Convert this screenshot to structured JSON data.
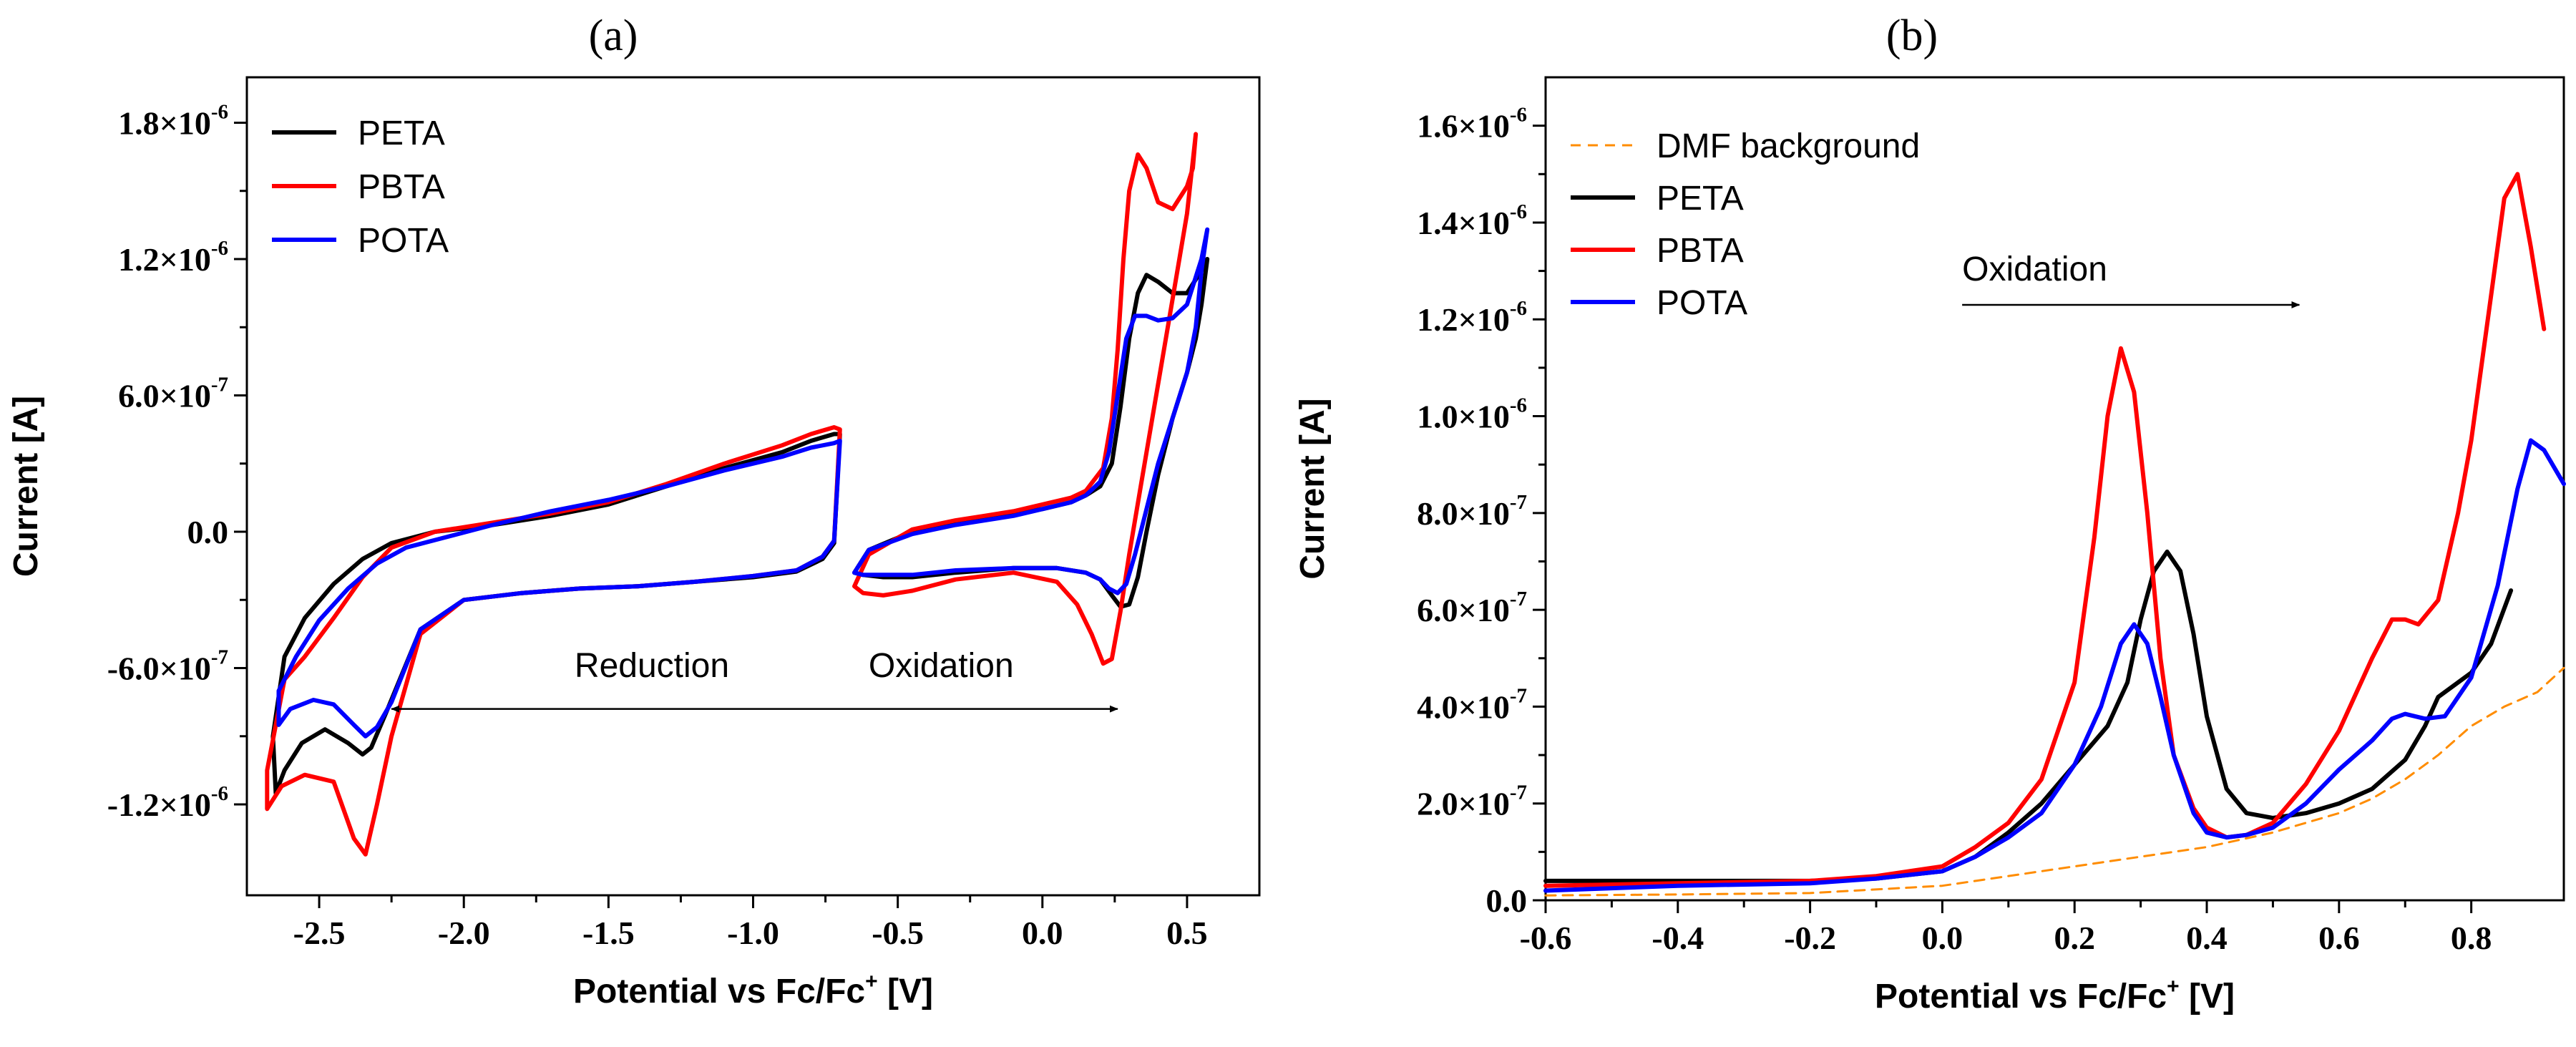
{
  "chart_data": [
    {
      "panel_label": "(a)",
      "type": "line",
      "title": "",
      "xlabel_main": "Potential vs Fc/Fc",
      "xlabel_sup": "+",
      "xlabel_tail": " [V]",
      "ylabel": "Current [A]",
      "xlim": [
        -2.75,
        0.75
      ],
      "ylim": [
        -1.6e-06,
        2e-06
      ],
      "xticks": [
        -2.5,
        -2.0,
        -1.5,
        -1.0,
        -0.5,
        0.0,
        0.5
      ],
      "xtick_labels": [
        "-2.5",
        "-2.0",
        "-1.5",
        "-1.0",
        "-0.5",
        "0.0",
        "0.5"
      ],
      "yticks": [
        {
          "value": 1.8e-06,
          "mantissa": "1.8×10",
          "exp": "-6"
        },
        {
          "value": 1.2e-06,
          "mantissa": "1.2×10",
          "exp": "-6"
        },
        {
          "value": 6e-07,
          "mantissa": "6.0×10",
          "exp": "-7"
        },
        {
          "value": 0,
          "mantissa": "0.0",
          "exp": ""
        },
        {
          "value": -6e-07,
          "mantissa": "-6.0×10",
          "exp": "-7"
        },
        {
          "value": -1.2e-06,
          "mantissa": "-1.2×10",
          "exp": "-6"
        }
      ],
      "legend": {
        "position": "top-left",
        "entries": [
          {
            "label": "PETA",
            "color": "#000000",
            "dash": false
          },
          {
            "label": "PBTA",
            "color": "#ff0000",
            "dash": false
          },
          {
            "label": "POTA",
            "color": "#0000ff",
            "dash": false
          }
        ]
      },
      "annotations": [
        {
          "text": "Reduction",
          "x": -1.35,
          "y": -6.4e-07,
          "anchor": "middle",
          "arrow": {
            "from": [
              -0.65,
              -7.8e-07
            ],
            "to": [
              -2.25,
              -7.8e-07
            ]
          }
        },
        {
          "text": "Oxidation",
          "x": -0.35,
          "y": -6.4e-07,
          "anchor": "middle",
          "arrow": {
            "from": [
              -0.65,
              -7.8e-07
            ],
            "to": [
              0.26,
              -7.8e-07
            ]
          }
        }
      ],
      "series": [
        {
          "name": "PETA",
          "color": "#000000",
          "x": [
            -0.7,
            -0.72,
            -0.76,
            -0.85,
            -1.0,
            -1.2,
            -1.4,
            -1.6,
            -1.8,
            -2.0,
            -2.15,
            -2.27,
            -2.32,
            -2.35,
            -2.4,
            -2.48,
            -2.56,
            -2.62,
            -2.65,
            -2.66,
            -2.62,
            -2.55,
            -2.45,
            -2.35,
            -2.25,
            -2.1,
            -1.9,
            -1.7,
            -1.5,
            -1.3,
            -1.1,
            -0.9,
            -0.8,
            -0.72,
            -0.7
          ],
          "y": [
            4.3e-07,
            -5e-08,
            -1.2e-07,
            -1.75e-07,
            -2e-07,
            -2.2e-07,
            -2.4e-07,
            -2.5e-07,
            -2.7e-07,
            -3e-07,
            -4.3e-07,
            -8e-07,
            -9.5e-07,
            -9.8e-07,
            -9.3e-07,
            -8.7e-07,
            -9.3e-07,
            -1.05e-06,
            -1.15e-06,
            -9e-07,
            -5.5e-07,
            -3.8e-07,
            -2.3e-07,
            -1.2e-07,
            -5e-08,
            0,
            3e-08,
            7e-08,
            1.2e-07,
            2e-07,
            2.8e-07,
            3.5e-07,
            4e-07,
            4.3e-07,
            4.3e-07
          ]
        },
        {
          "name": "PBTA",
          "color": "#ff0000",
          "x": [
            -0.7,
            -0.72,
            -0.76,
            -0.85,
            -1.0,
            -1.2,
            -1.4,
            -1.6,
            -1.8,
            -2.0,
            -2.15,
            -2.25,
            -2.3,
            -2.34,
            -2.38,
            -2.45,
            -2.55,
            -2.63,
            -2.68,
            -2.68,
            -2.62,
            -2.55,
            -2.45,
            -2.35,
            -2.25,
            -2.1,
            -1.9,
            -1.7,
            -1.5,
            -1.3,
            -1.1,
            -0.9,
            -0.8,
            -0.72,
            -0.7
          ],
          "y": [
            4.5e-07,
            -4e-08,
            -1.1e-07,
            -1.7e-07,
            -1.95e-07,
            -2.2e-07,
            -2.4e-07,
            -2.5e-07,
            -2.7e-07,
            -3e-07,
            -4.5e-07,
            -9e-07,
            -1.2e-06,
            -1.42e-06,
            -1.35e-06,
            -1.1e-06,
            -1.07e-06,
            -1.12e-06,
            -1.22e-06,
            -1.05e-06,
            -6.5e-07,
            -5.5e-07,
            -3.8e-07,
            -2e-07,
            -7e-08,
            0,
            4e-08,
            8e-08,
            1.3e-07,
            2.1e-07,
            3e-07,
            3.8e-07,
            4.3e-07,
            4.6e-07,
            4.5e-07
          ]
        },
        {
          "name": "POTA",
          "color": "#0000ff",
          "x": [
            -0.7,
            -0.72,
            -0.76,
            -0.85,
            -1.0,
            -1.2,
            -1.4,
            -1.6,
            -1.8,
            -2.0,
            -2.15,
            -2.25,
            -2.3,
            -2.34,
            -2.38,
            -2.45,
            -2.52,
            -2.6,
            -2.64,
            -2.64,
            -2.58,
            -2.5,
            -2.4,
            -2.3,
            -2.2,
            -2.05,
            -1.9,
            -1.7,
            -1.5,
            -1.3,
            -1.1,
            -0.9,
            -0.8,
            -0.72,
            -0.7
          ],
          "y": [
            4e-07,
            -4e-08,
            -1.1e-07,
            -1.7e-07,
            -1.95e-07,
            -2.2e-07,
            -2.4e-07,
            -2.5e-07,
            -2.7e-07,
            -3e-07,
            -4.3e-07,
            -7.5e-07,
            -8.6e-07,
            -9e-07,
            -8.5e-07,
            -7.6e-07,
            -7.4e-07,
            -7.8e-07,
            -8.5e-07,
            -7e-07,
            -5.5e-07,
            -3.9e-07,
            -2.5e-07,
            -1.4e-07,
            -7e-08,
            -2e-08,
            3e-08,
            9e-08,
            1.4e-07,
            2e-07,
            2.7e-07,
            3.3e-07,
            3.7e-07,
            3.9e-07,
            4e-07
          ]
        },
        {
          "name": "PETA-ox",
          "color": "#000000",
          "x": [
            -0.65,
            -0.62,
            -0.55,
            -0.45,
            -0.3,
            -0.1,
            0.05,
            0.15,
            0.2,
            0.24,
            0.27,
            0.3,
            0.33,
            0.36,
            0.4,
            0.45,
            0.5,
            0.53,
            0.55,
            0.57,
            0.55,
            0.5,
            0.45,
            0.4,
            0.36,
            0.33,
            0.3,
            0.27,
            0.24,
            0.2,
            0.15,
            0.1,
            0.0,
            -0.1,
            -0.2,
            -0.3,
            -0.45,
            -0.6,
            -0.65
          ],
          "y": [
            -1.8e-07,
            -1.9e-07,
            -2e-07,
            -2e-07,
            -1.8e-07,
            -1.6e-07,
            -1.6e-07,
            -1.8e-07,
            -2.1e-07,
            -2.8e-07,
            -3.3e-07,
            -3.2e-07,
            -2e-07,
            0,
            2.5e-07,
            5e-07,
            7e-07,
            8.5e-07,
            1e-06,
            1.2e-06,
            1.15e-06,
            1.05e-06,
            1.05e-06,
            1.1e-06,
            1.13e-06,
            1.05e-06,
            8.5e-07,
            5.5e-07,
            3e-07,
            2e-07,
            1.6e-07,
            1.3e-07,
            1e-07,
            8e-08,
            6e-08,
            4e-08,
            0,
            -8e-08,
            -1.8e-07
          ]
        },
        {
          "name": "PBTA-ox",
          "color": "#ff0000",
          "x": [
            -0.65,
            -0.62,
            -0.55,
            -0.45,
            -0.3,
            -0.1,
            0.05,
            0.12,
            0.17,
            0.21,
            0.24,
            0.27,
            0.3,
            0.34,
            0.38,
            0.42,
            0.46,
            0.5,
            0.53,
            0.52,
            0.5,
            0.45,
            0.4,
            0.36,
            0.33,
            0.3,
            0.28,
            0.26,
            0.24,
            0.21,
            0.15,
            0.1,
            0.0,
            -0.1,
            -0.2,
            -0.3,
            -0.45,
            -0.6,
            -0.65
          ],
          "y": [
            -2.4e-07,
            -2.7e-07,
            -2.8e-07,
            -2.6e-07,
            -2.1e-07,
            -1.8e-07,
            -2.2e-07,
            -3.2e-07,
            -4.5e-07,
            -5.8e-07,
            -5.6e-07,
            -3.5e-07,
            -1e-07,
            2e-07,
            5e-07,
            8e-07,
            1.1e-06,
            1.4e-06,
            1.75e-06,
            1.6e-06,
            1.52e-06,
            1.42e-06,
            1.45e-06,
            1.6e-06,
            1.66e-06,
            1.5e-06,
            1.2e-06,
            8e-07,
            5e-07,
            2.8e-07,
            1.8e-07,
            1.5e-07,
            1.2e-07,
            9e-08,
            7e-08,
            5e-08,
            1e-08,
            -1e-07,
            -2.4e-07
          ]
        },
        {
          "name": "POTA-ox",
          "color": "#0000ff",
          "x": [
            -0.65,
            -0.62,
            -0.55,
            -0.45,
            -0.3,
            -0.1,
            0.05,
            0.15,
            0.2,
            0.23,
            0.26,
            0.29,
            0.32,
            0.36,
            0.4,
            0.45,
            0.5,
            0.53,
            0.55,
            0.57,
            0.55,
            0.5,
            0.45,
            0.4,
            0.36,
            0.32,
            0.29,
            0.26,
            0.23,
            0.2,
            0.15,
            0.1,
            0.0,
            -0.1,
            -0.2,
            -0.3,
            -0.45,
            -0.6,
            -0.65
          ],
          "y": [
            -1.8e-07,
            -1.9e-07,
            -1.9e-07,
            -1.9e-07,
            -1.7e-07,
            -1.6e-07,
            -1.6e-07,
            -1.8e-07,
            -2.1e-07,
            -2.5e-07,
            -2.7e-07,
            -2.3e-07,
            -1e-07,
            1e-07,
            3e-07,
            5e-07,
            7e-07,
            9e-07,
            1.15e-06,
            1.33e-06,
            1.2e-06,
            1e-06,
            9.4e-07,
            9.3e-07,
            9.5e-07,
            9.5e-07,
            8.5e-07,
            6e-07,
            3.5e-07,
            2.2e-07,
            1.6e-07,
            1.3e-07,
            1e-07,
            7e-08,
            5e-08,
            3e-08,
            -1e-08,
            -8e-08,
            -1.8e-07
          ]
        }
      ]
    },
    {
      "panel_label": "(b)",
      "type": "line",
      "title": "",
      "xlabel_main": "Potential vs Fc/Fc",
      "xlabel_sup": "+",
      "xlabel_tail": " [V]",
      "ylabel": "Current [A]",
      "xlim": [
        -0.6,
        0.94
      ],
      "ylim": [
        0,
        1.7e-06
      ],
      "xticks": [
        -0.6,
        -0.4,
        -0.2,
        0.0,
        0.2,
        0.4,
        0.6,
        0.8
      ],
      "xtick_labels": [
        "-0.6",
        "-0.4",
        "-0.2",
        "0.0",
        "0.2",
        "0.4",
        "0.6",
        "0.8"
      ],
      "yticks": [
        {
          "value": 1.6e-06,
          "mantissa": "1.6×10",
          "exp": "-6"
        },
        {
          "value": 1.4e-06,
          "mantissa": "1.4×10",
          "exp": "-6"
        },
        {
          "value": 1.2e-06,
          "mantissa": "1.2×10",
          "exp": "-6"
        },
        {
          "value": 1e-06,
          "mantissa": "1.0×10",
          "exp": "-6"
        },
        {
          "value": 8e-07,
          "mantissa": "8.0×10",
          "exp": "-7"
        },
        {
          "value": 6e-07,
          "mantissa": "6.0×10",
          "exp": "-7"
        },
        {
          "value": 4e-07,
          "mantissa": "4.0×10",
          "exp": "-7"
        },
        {
          "value": 2e-07,
          "mantissa": "2.0×10",
          "exp": "-7"
        },
        {
          "value": 0,
          "mantissa": "0.0",
          "exp": ""
        }
      ],
      "legend": {
        "position": "top-left",
        "entries": [
          {
            "label": "DMF background",
            "color": "#ff8c00",
            "dash": true
          },
          {
            "label": "PETA",
            "color": "#000000",
            "dash": false
          },
          {
            "label": "PBTA",
            "color": "#ff0000",
            "dash": false
          },
          {
            "label": "POTA",
            "color": "#0000ff",
            "dash": false
          }
        ]
      },
      "annotations": [
        {
          "text": "Oxidation",
          "x": 0.03,
          "y": 1.28e-06,
          "anchor": "start",
          "arrow": {
            "from": [
              0.03,
              1.23e-06
            ],
            "to": [
              0.54,
              1.23e-06
            ]
          }
        }
      ],
      "series": [
        {
          "name": "DMF background",
          "color": "#ff8c00",
          "dash": true,
          "x": [
            -0.6,
            -0.4,
            -0.2,
            0.0,
            0.2,
            0.4,
            0.5,
            0.6,
            0.65,
            0.7,
            0.75,
            0.8,
            0.85,
            0.9,
            0.94
          ],
          "y": [
            1e-08,
            1.2e-08,
            1.5e-08,
            3e-08,
            7e-08,
            1.1e-07,
            1.4e-07,
            1.8e-07,
            2.1e-07,
            2.5e-07,
            3e-07,
            3.6e-07,
            4e-07,
            4.3e-07,
            4.8e-07
          ]
        },
        {
          "name": "PETA",
          "color": "#000000",
          "x": [
            -0.6,
            -0.4,
            -0.2,
            -0.1,
            0.0,
            0.05,
            0.1,
            0.15,
            0.2,
            0.25,
            0.28,
            0.3,
            0.32,
            0.34,
            0.36,
            0.38,
            0.4,
            0.43,
            0.46,
            0.5,
            0.55,
            0.6,
            0.65,
            0.7,
            0.73,
            0.75,
            0.78,
            0.8,
            0.83,
            0.86
          ],
          "y": [
            4e-08,
            4e-08,
            4e-08,
            4.5e-08,
            6e-08,
            9e-08,
            1.4e-07,
            2e-07,
            2.8e-07,
            3.6e-07,
            4.5e-07,
            5.8e-07,
            6.8e-07,
            7.2e-07,
            6.8e-07,
            5.5e-07,
            3.8e-07,
            2.3e-07,
            1.8e-07,
            1.7e-07,
            1.8e-07,
            2e-07,
            2.3e-07,
            2.9e-07,
            3.6e-07,
            4.2e-07,
            4.5e-07,
            4.7e-07,
            5.3e-07,
            6.4e-07
          ]
        },
        {
          "name": "PBTA",
          "color": "#ff0000",
          "x": [
            -0.6,
            -0.4,
            -0.2,
            -0.1,
            0.0,
            0.05,
            0.1,
            0.15,
            0.2,
            0.23,
            0.25,
            0.27,
            0.29,
            0.31,
            0.33,
            0.35,
            0.38,
            0.4,
            0.43,
            0.46,
            0.5,
            0.55,
            0.6,
            0.65,
            0.68,
            0.7,
            0.72,
            0.75,
            0.78,
            0.8,
            0.83,
            0.85,
            0.87,
            0.89,
            0.91
          ],
          "y": [
            3e-08,
            3.5e-08,
            4e-08,
            5e-08,
            7e-08,
            1.1e-07,
            1.6e-07,
            2.5e-07,
            4.5e-07,
            7.5e-07,
            1e-06,
            1.14e-06,
            1.05e-06,
            8e-07,
            5e-07,
            3e-07,
            1.9e-07,
            1.5e-07,
            1.3e-07,
            1.35e-07,
            1.6e-07,
            2.4e-07,
            3.5e-07,
            5e-07,
            5.8e-07,
            5.8e-07,
            5.7e-07,
            6.2e-07,
            8e-07,
            9.5e-07,
            1.25e-06,
            1.45e-06,
            1.5e-06,
            1.35e-06,
            1.18e-06
          ]
        },
        {
          "name": "POTA",
          "color": "#0000ff",
          "x": [
            -0.6,
            -0.4,
            -0.2,
            -0.1,
            0.0,
            0.05,
            0.1,
            0.15,
            0.2,
            0.24,
            0.27,
            0.29,
            0.31,
            0.33,
            0.35,
            0.38,
            0.4,
            0.43,
            0.46,
            0.5,
            0.55,
            0.6,
            0.65,
            0.68,
            0.7,
            0.73,
            0.76,
            0.8,
            0.84,
            0.87,
            0.89,
            0.91,
            0.94
          ],
          "y": [
            2e-08,
            3e-08,
            3.5e-08,
            4.5e-08,
            6e-08,
            9e-08,
            1.3e-07,
            1.8e-07,
            2.8e-07,
            4e-07,
            5.3e-07,
            5.7e-07,
            5.3e-07,
            4.2e-07,
            3e-07,
            1.8e-07,
            1.4e-07,
            1.3e-07,
            1.35e-07,
            1.5e-07,
            2e-07,
            2.7e-07,
            3.3e-07,
            3.75e-07,
            3.85e-07,
            3.75e-07,
            3.8e-07,
            4.6e-07,
            6.5e-07,
            8.5e-07,
            9.5e-07,
            9.3e-07,
            8.6e-07
          ]
        }
      ]
    }
  ]
}
